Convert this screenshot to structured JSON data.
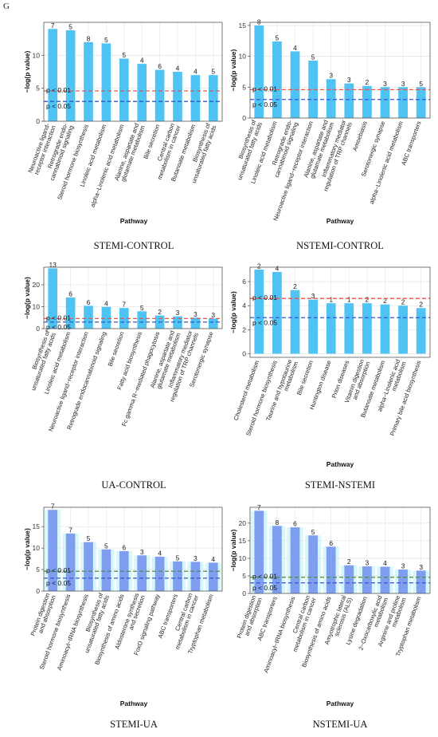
{
  "figure": {
    "panel_letter": "G",
    "colors": {
      "bar_cyan": "#4fc4f4",
      "bar_blue": "#7f9ef0",
      "bar_band_light": "#d6f7fb",
      "threshold_red": "#e9544c",
      "threshold_blue": "#3556c9",
      "threshold_green": "#4f8f3f",
      "grid": "#e6e6e6",
      "axis": "#555555"
    }
  },
  "chart_data": [
    {
      "type": "bar",
      "caption": "STEMI-CONTROL",
      "xlabel": "Pathway",
      "ylabel": "−log(p value)",
      "ylim": [
        0,
        15
      ],
      "yticks": [
        0,
        5,
        10
      ],
      "categories": [
        "Neuroactive ligand-receptor interaction",
        "Retrograde endocannabinoid signaling",
        "Steroid hormone biosynthesis",
        "Linoleic acid metabolism",
        "alpha-Linolenic acid metabolism",
        "Alanine, aspartate and glutamate metabolism",
        "Bile secretion",
        "Central carbon metabolism in cancer",
        "Butanoate metabolism",
        "Biosynthesis of unsaturated fatty acids"
      ],
      "tick_labels": [
        [
          "Neuroactive ligand-",
          "receptor interaction"
        ],
        [
          "Retrograde endo-",
          "cannabinoid signaling"
        ],
        [
          "Steroid hormone biosynthesis"
        ],
        [
          "Linoleic acid metabolism"
        ],
        [
          "alpha−Linolenic acid metabolism"
        ],
        [
          "Alanine, aspartate and",
          "glutamate metabolism"
        ],
        [
          "Bile secretion"
        ],
        [
          "Central carbon",
          "metabolism in cancer"
        ],
        [
          "Butanoate metabolism"
        ],
        [
          "Biosynthesis of",
          "unsaturated fatty acids"
        ]
      ],
      "values": [
        14.0,
        13.8,
        12.0,
        11.8,
        9.5,
        8.7,
        7.8,
        7.5,
        7.0,
        7.0
      ],
      "data_labels": [
        "7",
        "5",
        "8",
        "5",
        "5",
        "4",
        "6",
        "4",
        "4",
        "5"
      ],
      "thresholds": [
        {
          "label": "p < 0.01",
          "value": 4.6,
          "color": "red"
        },
        {
          "label": "p < 0.05",
          "value": 3.0,
          "color": "blue"
        }
      ],
      "bar_color": "cyan",
      "light_band": false
    },
    {
      "type": "bar",
      "caption": "NSTEMI-CONTROL",
      "xlabel": "Pathway",
      "ylabel": "−log(p value)",
      "ylim": [
        0,
        15.5
      ],
      "yticks": [
        0,
        5,
        10,
        15
      ],
      "categories": [
        "Biosynthesis of unsaturated fatty acids",
        "Linoleic acid metabolism",
        "Retrograde endocannabinoid signaling",
        "Neuroactive ligand-receptor interaction",
        "Alanine, aspartate and glutamate metabolism",
        "Inflammatory mediator regulation of TRP channels",
        "Amoebiasis",
        "Serotonergic synapse",
        "alpha-Linolenic acid metabolism",
        "ABC transporters"
      ],
      "tick_labels": [
        [
          "Biosynthesis of",
          "unsaturated fatty acids"
        ],
        [
          "Linoleic acid metabolism"
        ],
        [
          "Retrograde endo-",
          "cannabinoid signaling"
        ],
        [
          "Neuroactive ligand−receptor interaction"
        ],
        [
          "Alanine, aspartate and",
          "glutamate metabolism"
        ],
        [
          "Inflammatory mediator",
          "regulation of TRP channels"
        ],
        [
          "Amoebiasis"
        ],
        [
          "Serotonergic synapse"
        ],
        [
          "alpha−Linolenic acid metabolism"
        ],
        [
          "ABC transporters"
        ]
      ],
      "values": [
        15.0,
        12.4,
        10.8,
        9.3,
        6.3,
        5.6,
        5.2,
        5.0,
        5.0,
        5.0
      ],
      "data_labels": [
        "8",
        "5",
        "4",
        "5",
        "3",
        "3",
        "2",
        "3",
        "3",
        "5"
      ],
      "thresholds": [
        {
          "label": "p < 0.01",
          "value": 4.6,
          "color": "red"
        },
        {
          "label": "p < 0.05",
          "value": 3.0,
          "color": "blue"
        }
      ],
      "bar_color": "cyan",
      "light_band": false
    },
    {
      "type": "bar",
      "caption": "UA-CONTROL",
      "xlabel": "",
      "ylabel": "−log(p value)",
      "ylim": [
        0,
        28
      ],
      "yticks": [
        0,
        10,
        20
      ],
      "categories": [
        "Biosynthesis of unsaturated fatty acids",
        "Linoleic acid metabolism",
        "Neuroactive ligand-receptor interaction",
        "Retrograde endocannabinoid signaling",
        "Bile secretion",
        "Fatty acid biosynthesis",
        "Fc gamma R-mediated phagocytosis",
        "Alanine, aspartate and glutamate metabolism",
        "Inflammatory mediator regulation of TRP channels",
        "Serotonergic synapse"
      ],
      "tick_labels": [
        [
          "Biosynthesis of",
          "unsaturated fatty acids"
        ],
        [
          "Linoleic acid metabolism"
        ],
        [
          "Neuroactive ligand−receptor interaction"
        ],
        [
          "Retrograde endocannabinoid signaling"
        ],
        [
          "Bile secretion"
        ],
        [
          "Fatty acid biosynthesis"
        ],
        [
          "Fc gamma R−mediated phagocytosis"
        ],
        [
          "Alanine, aspartate and",
          "glutamate metabolism"
        ],
        [
          "Inflammatory mediator",
          "regulation of TRP channels"
        ],
        [
          "Serotonergic synapse"
        ]
      ],
      "values": [
        27.5,
        14.2,
        10.4,
        9.9,
        9.4,
        7.9,
        6.0,
        5.6,
        5.0,
        4.6
      ],
      "data_labels": [
        "13",
        "6",
        "6",
        "4",
        "7",
        "5",
        "2",
        "3",
        "3",
        "3"
      ],
      "thresholds": [
        {
          "label": "p < 0.01",
          "value": 4.6,
          "color": "red"
        },
        {
          "label": "p < 0.05",
          "value": 3.0,
          "color": "blue"
        }
      ],
      "bar_color": "cyan",
      "light_band": false
    },
    {
      "type": "bar",
      "caption": "STEMI-NSTEMI",
      "xlabel": "Pathway",
      "ylabel": "−log(p value)",
      "ylim": [
        -0.3,
        7.2
      ],
      "yticks": [
        0,
        2,
        4,
        6
      ],
      "categories": [
        "Cholesterol metabolism",
        "Steroid hormone biosynthesis",
        "Taurine and hypotaurine metabolism",
        "Bile secretion",
        "Huntington disease",
        "Prion diseases",
        "Vitamin digestion and absorption",
        "Butanoate metabolism",
        "alpha-Linolenic acid metabolism",
        "Primary bile acid biosynthesis"
      ],
      "tick_labels": [
        [
          "Cholesterol metabolism"
        ],
        [
          "Steroid hormone biosynthesis"
        ],
        [
          "Taurine and hypotaurine",
          "metabolism"
        ],
        [
          "Bile secretion"
        ],
        [
          "Huntington disease"
        ],
        [
          "Prion diseases"
        ],
        [
          "Vitamin digestion",
          "and absorption"
        ],
        [
          "Butanoate metabolism"
        ],
        [
          "alpha−Linolenic acid",
          "metabolism"
        ],
        [
          "Primary bile acid biosynthesis"
        ]
      ],
      "values": [
        7.0,
        6.8,
        5.3,
        4.5,
        4.2,
        4.2,
        4.2,
        4.1,
        4.0,
        3.8
      ],
      "data_labels": [
        "2",
        "4",
        "2",
        "3",
        "1",
        "1",
        "2",
        "2",
        "2",
        "2"
      ],
      "thresholds": [
        {
          "label": "p < 0.01",
          "value": 4.6,
          "color": "red"
        },
        {
          "label": "p < 0.05",
          "value": 3.0,
          "color": "blue"
        }
      ],
      "bar_color": "cyan",
      "light_band": false
    },
    {
      "type": "bar",
      "caption": "STEMI-UA",
      "xlabel": "Pathway",
      "ylabel": "−log(p value)",
      "ylim": [
        0,
        19.5
      ],
      "yticks": [
        0,
        5,
        10,
        15
      ],
      "categories": [
        "Protein digestion and absorption",
        "Steroid hormone biosynthesis",
        "Aminoacyl-tRNA biosynthesis",
        "Biosynthesis of unsaturated fatty acids",
        "Biosynthesis of amino acids",
        "Aldosterone synthesis and secretion",
        "FoxO signaling pathway",
        "ABC transporters",
        "Central carbon metabolism in cancer",
        "Tryptophan metabolism"
      ],
      "tick_labels": [
        [
          "Protein digestion",
          "and absorption"
        ],
        [
          "Steroid hormone biosynthesis"
        ],
        [
          "Aminoacyl−tRNA biosynthesis"
        ],
        [
          "Biosynthesis of",
          "unsaturated fatty acids"
        ],
        [
          "Biosynthesis of amino acids"
        ],
        [
          "Aldosterone synthesis",
          "and secretion"
        ],
        [
          "FoxO signaling pathway"
        ],
        [
          "ABC transporters"
        ],
        [
          "Central carbon",
          "metabolism in cancer"
        ],
        [
          "Tryptophan metabolism"
        ]
      ],
      "values": [
        18.9,
        13.4,
        11.4,
        9.7,
        9.3,
        8.3,
        8.0,
        6.9,
        6.8,
        6.6
      ],
      "data_labels": [
        "7",
        "7",
        "5",
        "5",
        "6",
        "3",
        "4",
        "5",
        "3",
        "4"
      ],
      "thresholds": [
        {
          "label": "p < 0.01",
          "value": 4.6,
          "color": "green"
        },
        {
          "label": "p < 0.05",
          "value": 3.0,
          "color": "blue"
        }
      ],
      "bar_color": "blue",
      "light_band": true
    },
    {
      "type": "bar",
      "caption": "NSTEMI-UA",
      "xlabel": "Pathway",
      "ylabel": "−log(p value)",
      "ylim": [
        0,
        24.5
      ],
      "yticks": [
        0,
        5,
        10,
        15,
        20
      ],
      "categories": [
        "Protein digestion and absorption",
        "ABC transporters",
        "Aminoacyl-tRNA biosynthesis",
        "Central carbon metabolism in cancer",
        "Biosynthesis of amino acids",
        "Amyotrophic lateral sclerosis (ALS)",
        "Lysine degradation",
        "2-Oxocarboxylic acid metabolism",
        "Arginine and proline metabolism",
        "Tryptophan metabolism"
      ],
      "tick_labels": [
        [
          "Protein digestion",
          "and absorption"
        ],
        [
          "ABC transporters"
        ],
        [
          "Aminoacyl−tRNA biosynthesis"
        ],
        [
          "Central carbon",
          "metabolism in cancer"
        ],
        [
          "Biosynthesis of amino acids"
        ],
        [
          "Amyotrophic lateral",
          "sclerosis (ALS)"
        ],
        [
          "Lysine degradation"
        ],
        [
          "2−Oxocarboxylic acid",
          "metabolism"
        ],
        [
          "Arginine and proline",
          "metabolism"
        ],
        [
          "Tryptophan metabolism"
        ]
      ],
      "values": [
        23.5,
        19.2,
        18.8,
        16.5,
        13.3,
        8.0,
        7.7,
        7.6,
        6.8,
        6.5
      ],
      "data_labels": [
        "7",
        "8",
        "6",
        "5",
        "6",
        "2",
        "3",
        "4",
        "3",
        "3"
      ],
      "thresholds": [
        {
          "label": "p < 0.01",
          "value": 4.6,
          "color": "green"
        },
        {
          "label": "p < 0.05",
          "value": 3.0,
          "color": "blue"
        }
      ],
      "bar_color": "blue",
      "light_band": true
    }
  ]
}
